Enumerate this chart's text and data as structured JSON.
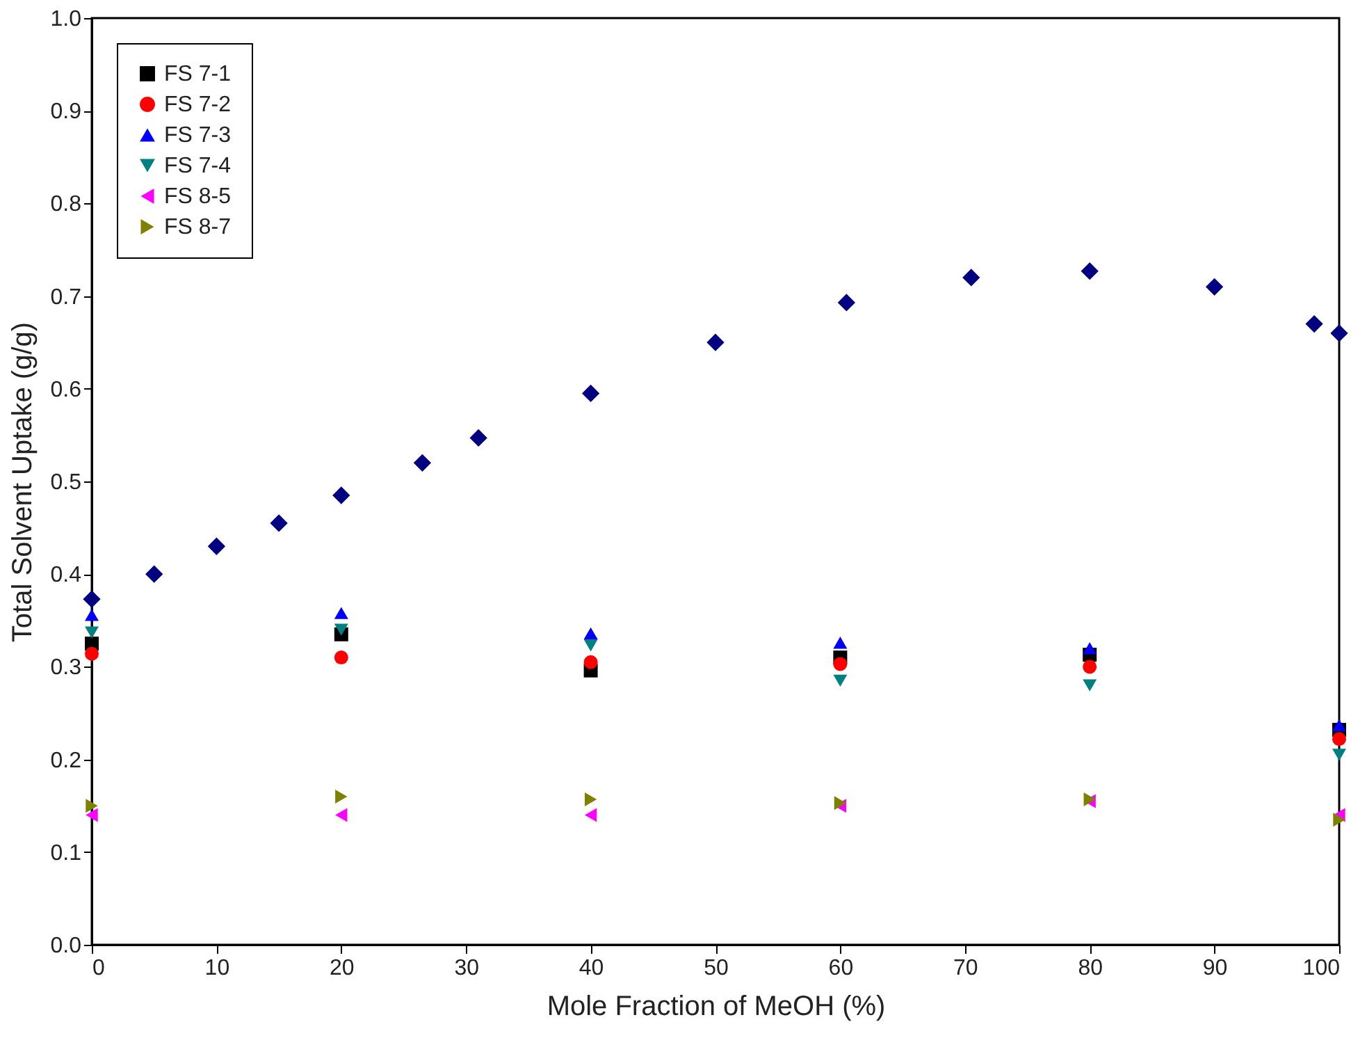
{
  "chart_data": {
    "type": "scatter",
    "xlabel": "Mole Fraction of MeOH (%)",
    "ylabel": "Total Solvent Uptake (g/g)",
    "xlim": [
      0,
      100
    ],
    "xticks": [
      0,
      10,
      20,
      30,
      40,
      50,
      60,
      70,
      80,
      90,
      100
    ],
    "ylim": [
      0,
      1
    ],
    "yticks": [
      {
        "value": 0,
        "label": "0.0"
      },
      0.1,
      0.2,
      0.3,
      0.4,
      0.5,
      0.6,
      0.7,
      0.8,
      0.9,
      {
        "value": 1,
        "label": "1.0"
      }
    ],
    "grid": false,
    "legend": "top left",
    "series": [
      {
        "name": "FS 7-1",
        "color": "#000000",
        "marker": "square",
        "x": [
          0,
          20,
          40,
          60,
          80,
          100
        ],
        "values": [
          0.325,
          0.335,
          0.296,
          0.31,
          0.313,
          0.232
        ]
      },
      {
        "name": "FS 7-2",
        "color": "#ff0000",
        "marker": "circle",
        "x": [
          0,
          20,
          40,
          60,
          80,
          100
        ],
        "values": [
          0.314,
          0.31,
          0.305,
          0.303,
          0.3,
          0.222
        ]
      },
      {
        "name": "FS 7-3",
        "color": "#0000ff",
        "marker": "triangle",
        "x": [
          0,
          20,
          40,
          60,
          80,
          100
        ],
        "values": [
          0.356,
          0.358,
          0.336,
          0.326,
          0.32,
          0.237
        ]
      },
      {
        "name": "FS 7-4",
        "color": "#008080",
        "marker": "triangle-down",
        "x": [
          0,
          20,
          40,
          60,
          80,
          100
        ],
        "values": [
          0.337,
          0.34,
          0.323,
          0.285,
          0.28,
          0.205
        ]
      },
      {
        "name": "FS 8-5",
        "color": "#ff00ff",
        "marker": "triangle-left",
        "x": [
          0,
          20,
          40,
          60,
          80,
          100
        ],
        "values": [
          0.14,
          0.14,
          0.14,
          0.15,
          0.155,
          0.14
        ]
      },
      {
        "name": "FS 8-7",
        "color": "#808000",
        "marker": "triangle-right",
        "x": [
          0,
          20,
          40,
          60,
          80,
          100
        ],
        "values": [
          0.15,
          0.16,
          0.157,
          0.153,
          0.157,
          0.135
        ]
      },
      {
        "color": "#000080",
        "marker": "diamond",
        "x": [
          0,
          5,
          10,
          15,
          20,
          26.5,
          31,
          40,
          50,
          60.5,
          70.5,
          80,
          90,
          98,
          100
        ],
        "values": [
          0.373,
          0.4,
          0.43,
          0.455,
          0.485,
          0.52,
          0.547,
          0.595,
          0.65,
          0.693,
          0.72,
          0.727,
          0.71,
          0.67,
          0.66
        ]
      }
    ]
  }
}
